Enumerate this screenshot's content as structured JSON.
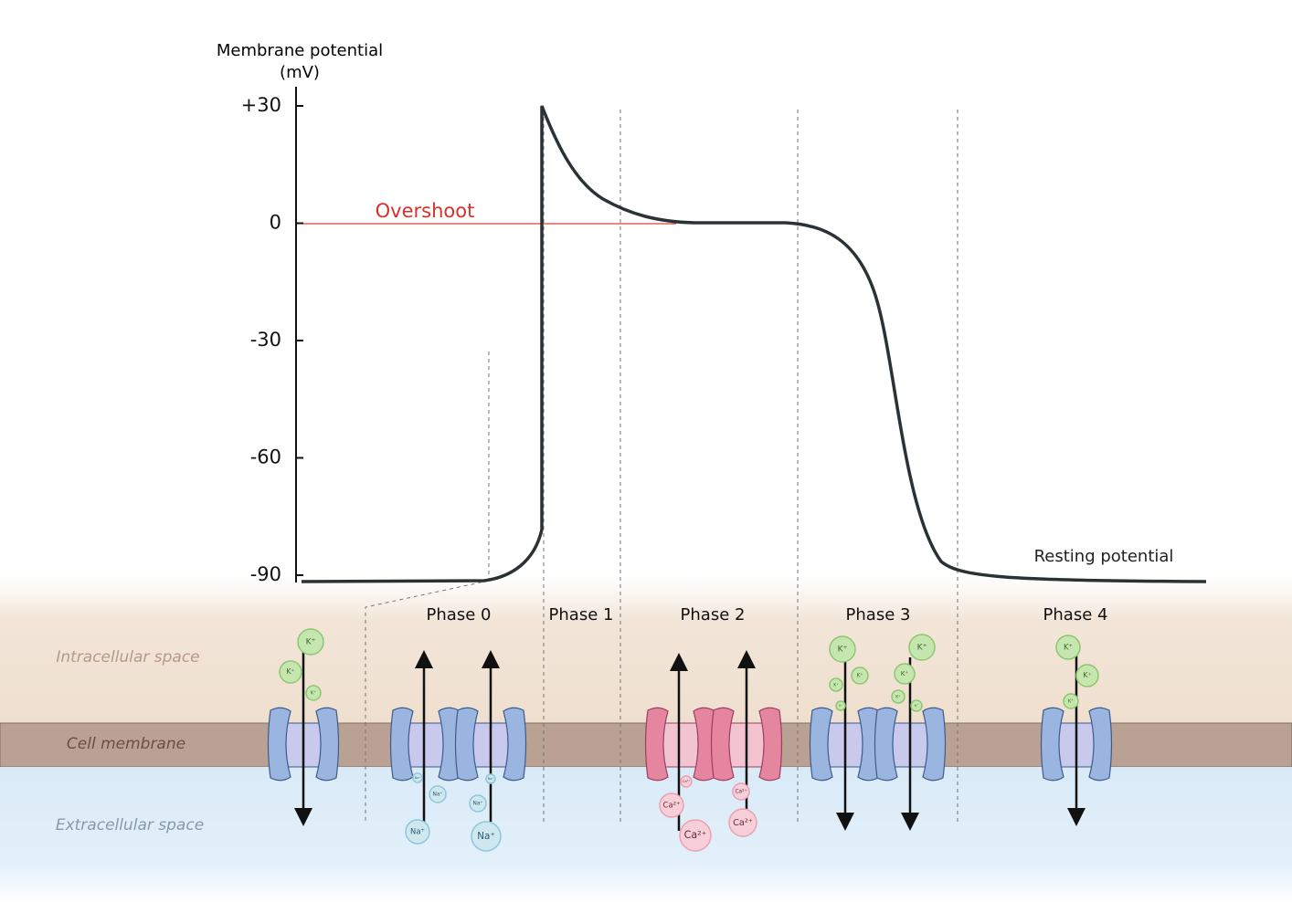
{
  "axis": {
    "label_line1": "Membrane potential",
    "label_line2": "(mV)",
    "ticks": [
      {
        "value": 30,
        "label": "+30"
      },
      0,
      -30,
      -60,
      -90
    ]
  },
  "annotations": {
    "overshoot": "Overshoot",
    "resting": "Resting potential"
  },
  "phases": [
    "Phase 0",
    "Phase 1",
    "Phase 2",
    "Phase 3",
    "Phase 4"
  ],
  "regions": {
    "intracellular": "Intracellular space",
    "membrane": "Cell membrane",
    "extracellular": "Extracellular space"
  },
  "ions": {
    "potassium": "K⁺",
    "sodium": "Na⁺",
    "calcium": "Ca²⁺"
  }
}
